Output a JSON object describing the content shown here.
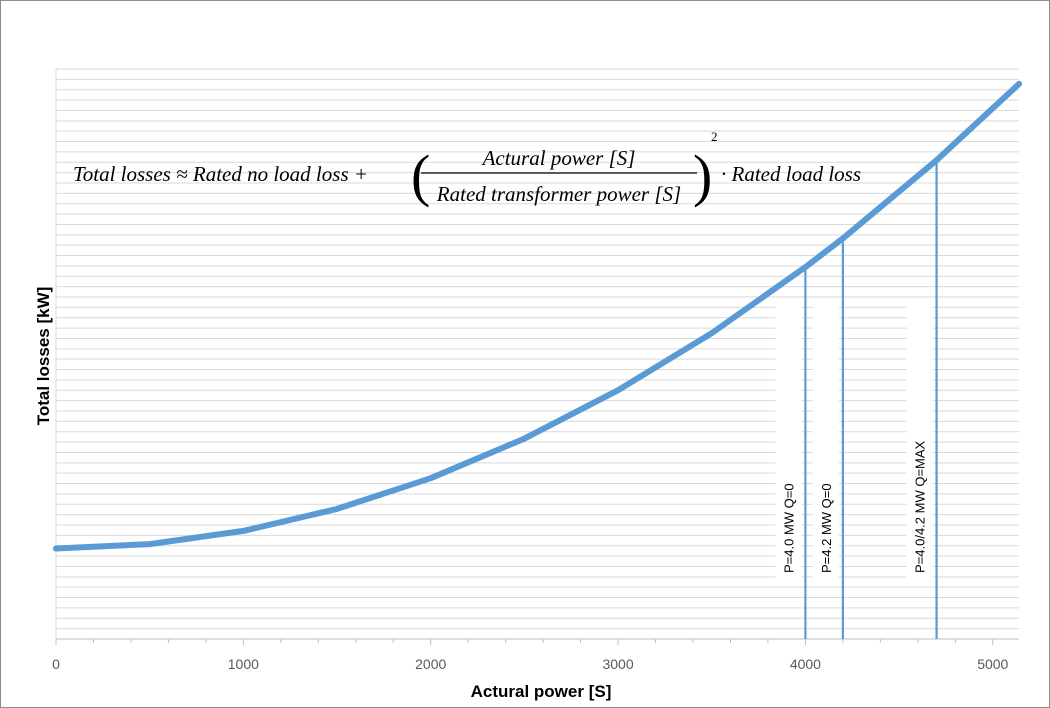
{
  "chart_data": {
    "type": "line",
    "title": "",
    "xlabel": "Actural power [S]",
    "ylabel": "Total losses [kW]",
    "xlim": [
      0,
      5140
    ],
    "x_ticks": [
      "0",
      "1000",
      "2000",
      "3000",
      "4000",
      "5000"
    ],
    "y_ticks_labeled": false,
    "grid": "horizontal",
    "line_color": "#5b9bd5",
    "formula": {
      "lhs": "Total losses ≈ Rated no load loss +",
      "numerator": "Actural power [S]",
      "denominator": "Rated transformer power [S]",
      "exponent": "2",
      "rhs": "· Rated load loss"
    },
    "series": [
      {
        "x": [
          0,
          500,
          1000,
          1500,
          2000,
          2500,
          3000,
          3500,
          4000,
          4200,
          4700,
          5140
        ],
        "y": [
          0.0,
          1.94,
          7.77,
          17.5,
          31.1,
          48.6,
          70.0,
          95.2,
          124.4,
          137.1,
          171.7,
          205.4
        ]
      }
    ],
    "markers": [
      {
        "x": 4000,
        "label": "P=4.0 MW Q=0"
      },
      {
        "x": 4200,
        "label": "P=4.2 MW Q=0"
      },
      {
        "x": 4700,
        "label": "P=4.0/4.2 MW Q=MAX"
      }
    ]
  }
}
